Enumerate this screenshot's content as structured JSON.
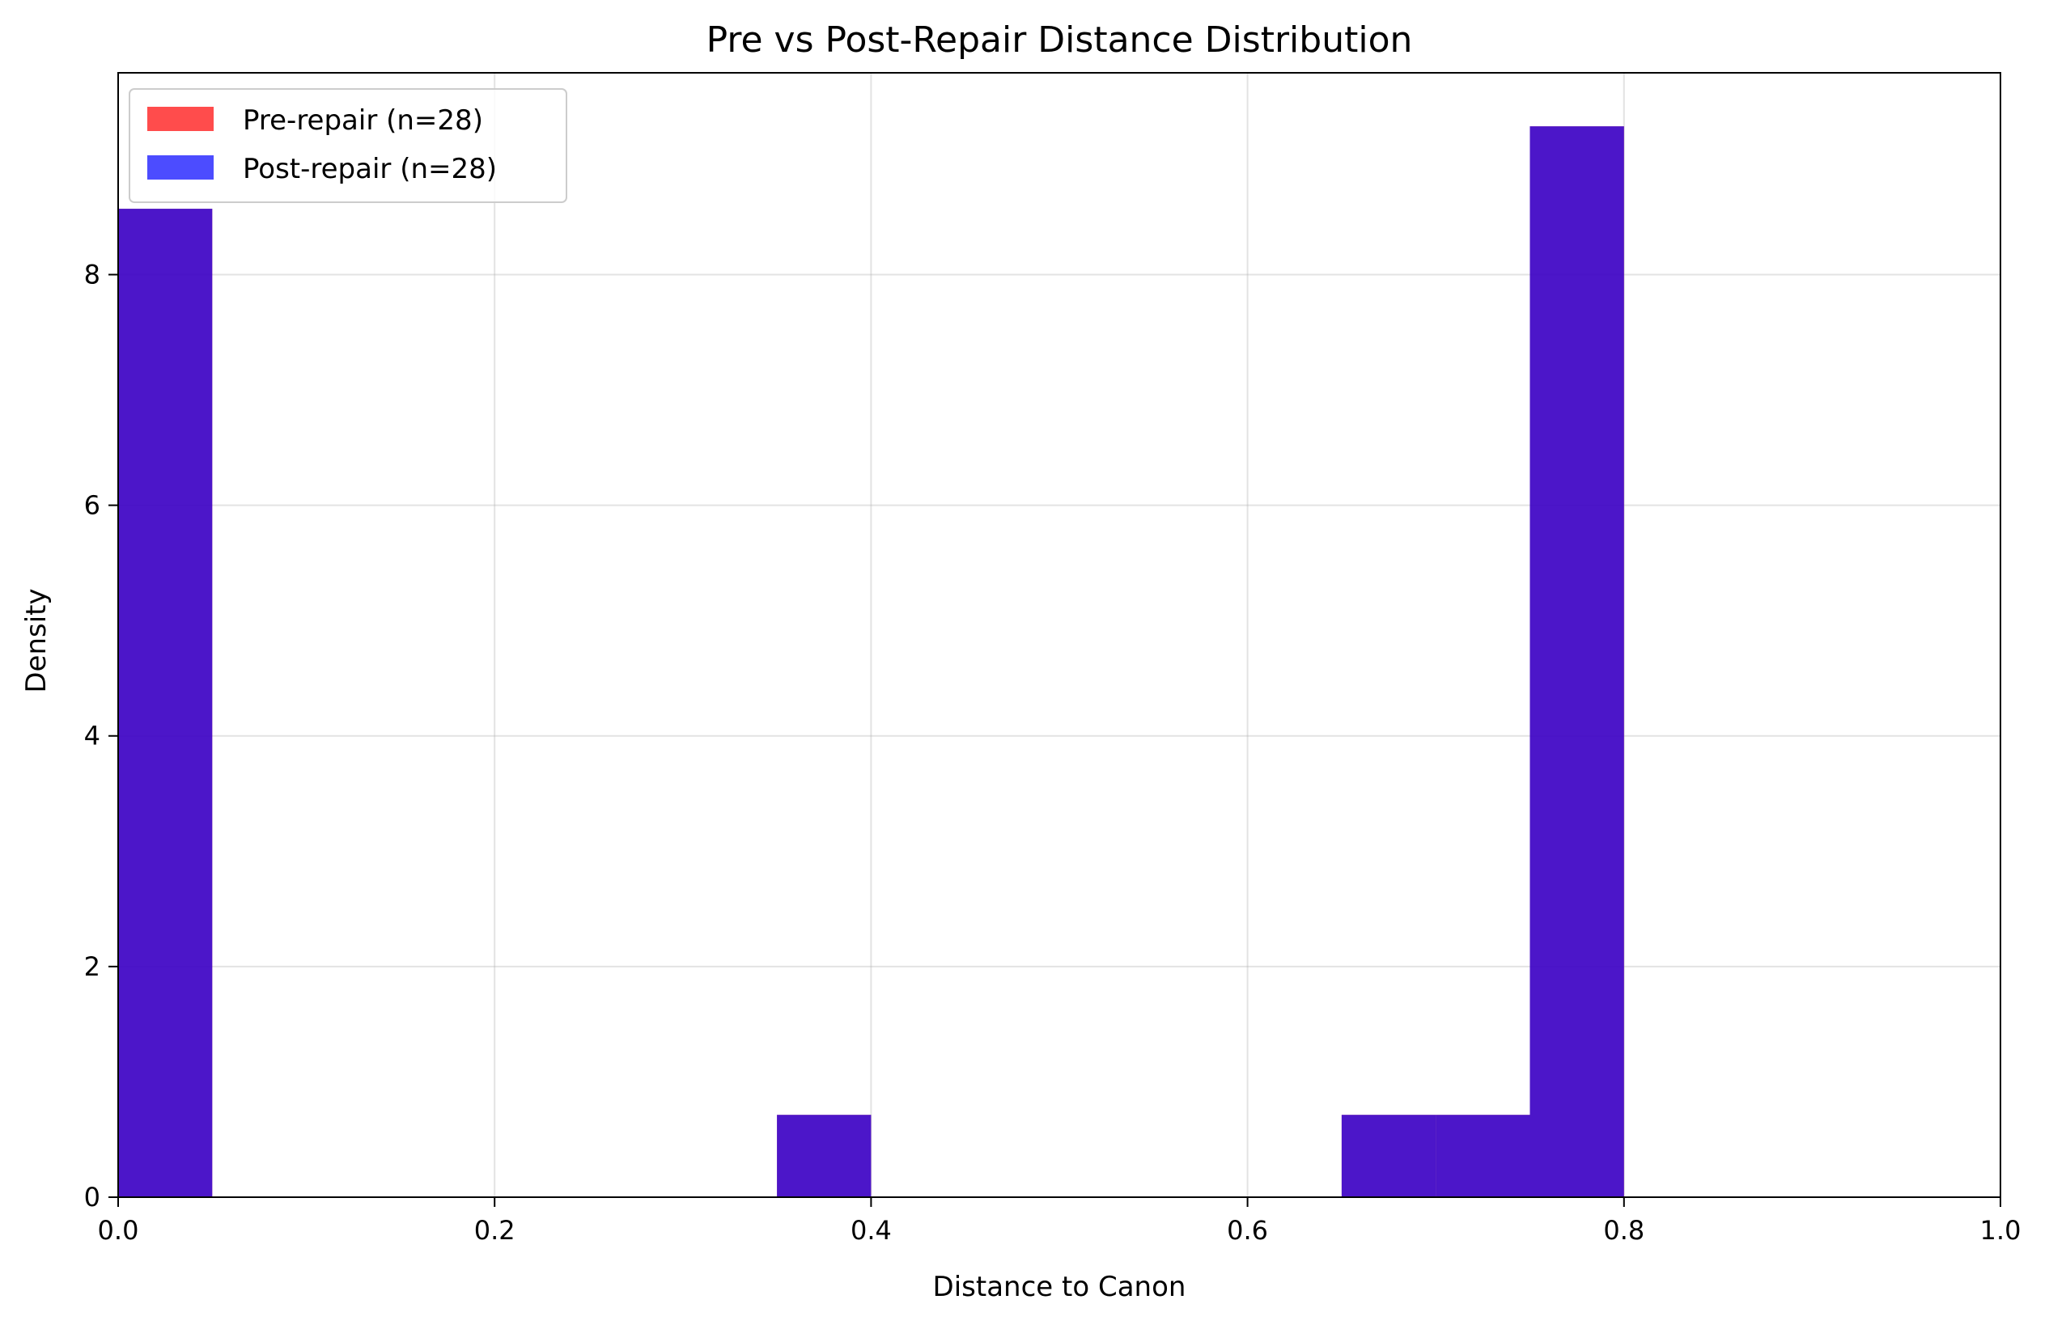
{
  "chart_data": {
    "type": "bar",
    "title": "Pre vs Post-Repair Distance Distribution",
    "xlabel": "Distance to Canon",
    "ylabel": "Density",
    "xlim": [
      0.0,
      1.0
    ],
    "ylim": [
      0,
      9.75
    ],
    "x_ticks": [
      "0.0",
      "0.2",
      "0.4",
      "0.6",
      "0.8",
      "1.0"
    ],
    "y_ticks": [
      "0",
      "2",
      "4",
      "6",
      "8"
    ],
    "grid": true,
    "legend_position": "top-left",
    "bin_edges": [
      0.0,
      0.05,
      0.1,
      0.15,
      0.2,
      0.25,
      0.3,
      0.35,
      0.4,
      0.45,
      0.5,
      0.55,
      0.6,
      0.65,
      0.7,
      0.75,
      0.8,
      0.85,
      0.9,
      0.95,
      1.0
    ],
    "series": [
      {
        "name": "Pre-repair (n=28)",
        "color": "#ff0000",
        "alpha": 0.7,
        "values": [
          8.571,
          0,
          0,
          0,
          0,
          0,
          0,
          0.714,
          0,
          0,
          0,
          0,
          0,
          0.714,
          0.714,
          9.286,
          0,
          0,
          0,
          0
        ]
      },
      {
        "name": "Post-repair (n=28)",
        "color": "#0000ff",
        "alpha": 0.7,
        "values": [
          8.571,
          0,
          0,
          0,
          0,
          0,
          0,
          0.714,
          0,
          0,
          0,
          0,
          0,
          0.714,
          0.714,
          9.286,
          0,
          0,
          0,
          0
        ]
      }
    ]
  }
}
